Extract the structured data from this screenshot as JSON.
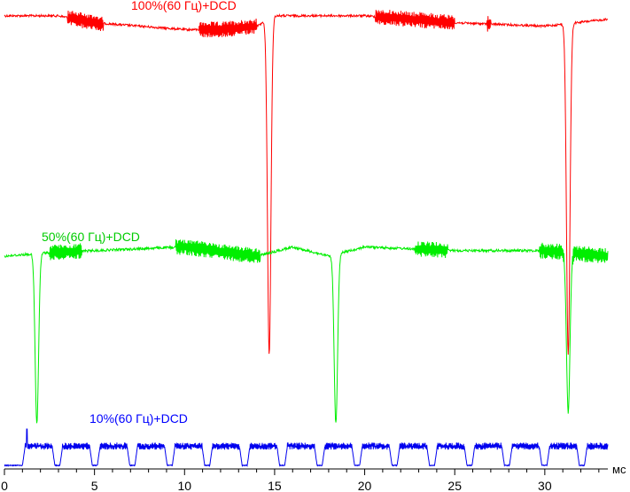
{
  "chart_data": {
    "type": "line",
    "title": "",
    "xlabel": "мс",
    "ylabel": "",
    "xlim": [
      0,
      33.5
    ],
    "x_ticks": [
      0,
      5,
      10,
      15,
      20,
      25,
      30
    ],
    "x_minor_step": 1,
    "grid": false,
    "legend": "labels placed above each trace",
    "series": [
      {
        "name": "100%(60 Гц)+DCD",
        "color": "#ff0000",
        "baseline_points": [
          [
            0,
            0.98
          ],
          [
            3,
            0.98
          ],
          [
            5,
            0.96
          ],
          [
            10,
            0.94
          ],
          [
            12,
            0.94
          ],
          [
            14,
            0.95
          ],
          [
            15,
            0.98
          ],
          [
            20,
            0.98
          ],
          [
            25,
            0.96
          ],
          [
            30,
            0.95
          ],
          [
            33.5,
            0.97
          ]
        ],
        "flicker_bursts": [
          [
            3.5,
            5.5
          ],
          [
            10.8,
            14.0
          ],
          [
            20.6,
            25.0
          ],
          [
            26.8,
            27.0
          ]
        ],
        "dips": [
          {
            "x": 14.7,
            "min": 0.0
          },
          {
            "x": 31.3,
            "min": 0.0
          }
        ],
        "min_label": "",
        "max_label": ""
      },
      {
        "name": "50%(60 Гц)+DCD",
        "color": "#00ee00",
        "baseline_points": [
          [
            0,
            0.9
          ],
          [
            2.5,
            0.92
          ],
          [
            5,
            0.93
          ],
          [
            10,
            0.95
          ],
          [
            14,
            0.9
          ],
          [
            16,
            0.95
          ],
          [
            18,
            0.9
          ],
          [
            20,
            0.95
          ],
          [
            25,
            0.93
          ],
          [
            30,
            0.93
          ],
          [
            33.5,
            0.9
          ]
        ],
        "flicker_bursts": [
          [
            2.5,
            4.3
          ],
          [
            9.5,
            14.2
          ],
          [
            22.8,
            24.6
          ],
          [
            29.7,
            33.5
          ]
        ],
        "dips": [
          {
            "x": 1.8,
            "min": 0.0
          },
          {
            "x": 18.4,
            "min": 0.0
          },
          {
            "x": 31.3,
            "min": 0.06
          }
        ]
      },
      {
        "name": "10%(60 Гц)+DCD",
        "color": "#0000ee",
        "pulse_period_ms": 2.08,
        "pulse_first_start_ms": 1.0,
        "pulse_low": 0.08,
        "pulse_high": 0.65,
        "spike_x": 1.25
      }
    ]
  }
}
